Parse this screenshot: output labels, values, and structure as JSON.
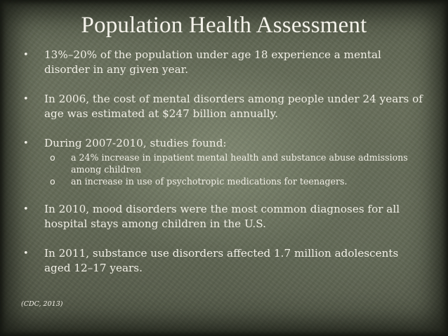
{
  "slide": {
    "title": "Population Health Assessment",
    "bullets": [
      {
        "text": "13%–20% of the population under age 18 experience a mental disorder in any given year."
      },
      {
        "text": "In 2006, the cost of mental disorders among people under 24 years of age was estimated at $247 billion annually."
      },
      {
        "text": "During 2007-2010, studies found:",
        "subitems": [
          "a 24% increase in inpatient mental health and substance abuse admissions among children",
          "an increase in use of psychotropic medications for teenagers."
        ]
      },
      {
        "text": "In 2010, mood disorders were the most common diagnoses for all hospital stays among children in the U.S."
      },
      {
        "text": "In 2011, substance use disorders affected 1.7 million adolescents aged 12–17 years."
      }
    ],
    "bullet_symbol": "•",
    "sub_symbol": "o",
    "citation": "(CDC, 2013)"
  }
}
